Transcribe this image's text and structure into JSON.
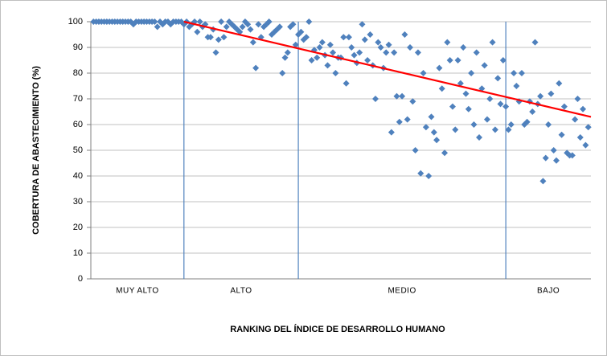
{
  "chart_data": {
    "type": "scatter",
    "y_label": "COBERTURA DE ABASTECIMIENTO (%)",
    "x_label": "RANKING DEL ÍNDICE DE DESARROLLO HUMANO",
    "groups": [
      "MUY ALTO",
      "ALTO",
      "MEDIO",
      "BAJO"
    ],
    "dividers": [
      35,
      78,
      156
    ],
    "xlim": [
      0,
      188
    ],
    "ylim": [
      0,
      100
    ],
    "yticks": [
      0,
      10,
      20,
      30,
      40,
      50,
      60,
      70,
      80,
      90,
      100
    ],
    "grid": true,
    "color": "#4f81bd",
    "trendline": {
      "color": "#ff0000",
      "x": [
        35,
        188
      ],
      "y": [
        100,
        63
      ]
    },
    "x": [
      1,
      2,
      3,
      4,
      5,
      6,
      7,
      8,
      9,
      10,
      11,
      12,
      13,
      14,
      15,
      16,
      17,
      18,
      19,
      20,
      21,
      22,
      23,
      24,
      25,
      26,
      27,
      28,
      29,
      30,
      31,
      32,
      33,
      34,
      35,
      36,
      37,
      38,
      39,
      40,
      41,
      42,
      43,
      44,
      45,
      46,
      47,
      48,
      49,
      50,
      51,
      52,
      53,
      54,
      55,
      56,
      57,
      58,
      59,
      60,
      61,
      62,
      63,
      64,
      65,
      66,
      67,
      68,
      69,
      70,
      71,
      72,
      73,
      74,
      75,
      76,
      77,
      78,
      79,
      80,
      81,
      82,
      83,
      84,
      85,
      86,
      87,
      88,
      89,
      90,
      91,
      92,
      93,
      94,
      95,
      96,
      97,
      98,
      99,
      100,
      101,
      102,
      103,
      104,
      105,
      106,
      107,
      108,
      109,
      110,
      111,
      112,
      113,
      114,
      115,
      116,
      117,
      118,
      119,
      120,
      121,
      122,
      123,
      124,
      125,
      126,
      127,
      128,
      129,
      130,
      131,
      132,
      133,
      134,
      135,
      136,
      137,
      138,
      139,
      140,
      141,
      142,
      143,
      144,
      145,
      146,
      147,
      148,
      149,
      150,
      151,
      152,
      153,
      154,
      155,
      156,
      157,
      158,
      159,
      160,
      161,
      162,
      163,
      164,
      165,
      166,
      167,
      168,
      169,
      170,
      171,
      172,
      173,
      174,
      175,
      176,
      177,
      178,
      179,
      180,
      181,
      182,
      183,
      184,
      185,
      186,
      187
    ],
    "y": [
      100,
      100,
      100,
      100,
      100,
      100,
      100,
      100,
      100,
      100,
      100,
      100,
      100,
      100,
      100,
      99,
      100,
      100,
      100,
      100,
      100,
      100,
      100,
      100,
      98,
      100,
      99,
      100,
      100,
      99,
      100,
      100,
      100,
      100,
      99,
      100,
      98,
      99,
      100,
      96,
      100,
      98,
      99,
      94,
      94,
      97,
      88,
      93,
      100,
      94,
      98,
      100,
      99,
      98,
      97,
      96,
      98,
      100,
      99,
      97,
      92,
      82,
      99,
      94,
      98,
      99,
      100,
      95,
      96,
      97,
      98,
      80,
      86,
      88,
      98,
      99,
      91,
      95,
      96,
      93,
      94,
      100,
      85,
      89,
      86,
      90,
      92,
      87,
      83,
      91,
      88,
      80,
      86,
      86,
      94,
      76,
      94,
      90,
      87,
      84,
      88,
      99,
      93,
      85,
      95,
      83,
      70,
      92,
      90,
      82,
      88,
      91,
      57,
      88,
      71,
      61,
      71,
      95,
      62,
      90,
      69,
      50,
      88,
      41,
      80,
      59,
      40,
      63,
      57,
      54,
      82,
      74,
      49,
      92,
      85,
      67,
      58,
      85,
      76,
      90,
      72,
      66,
      80,
      60,
      88,
      55,
      74,
      83,
      62,
      70,
      92,
      58,
      78,
      68,
      85,
      67,
      58,
      60,
      80,
      75,
      69,
      80,
      60,
      61,
      69,
      65,
      92,
      68,
      71,
      38,
      47,
      60,
      72,
      50,
      46,
      76,
      56,
      67,
      49,
      48,
      48,
      62,
      70,
      55,
      66,
      52,
      59
    ]
  }
}
